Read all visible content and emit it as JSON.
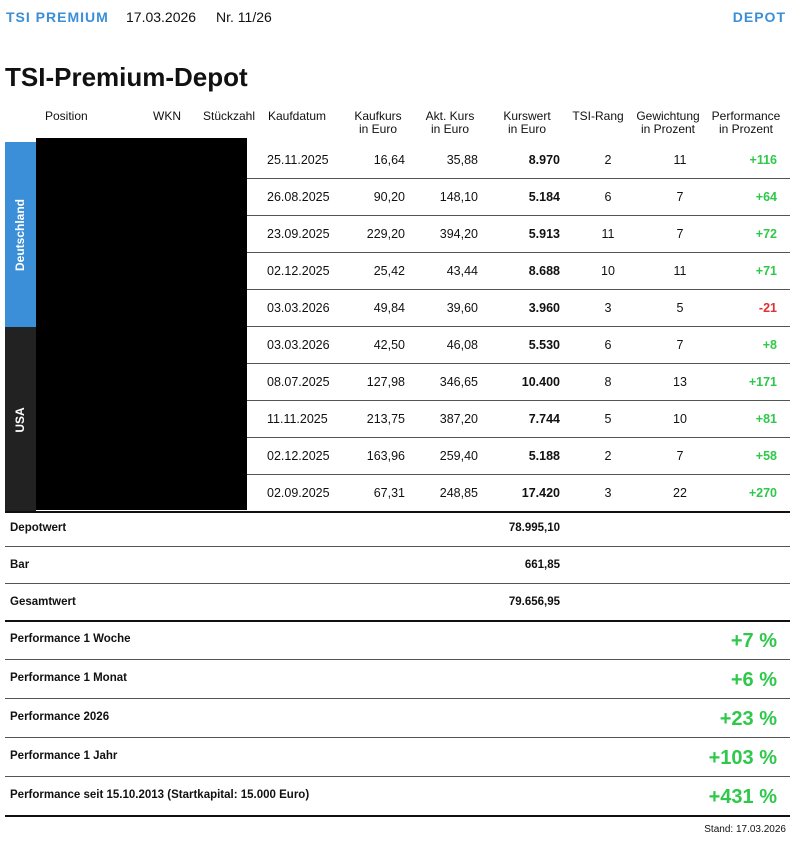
{
  "header": {
    "brand": "TSI PREMIUM",
    "date": "17.03.2026",
    "issue": "Nr. 11/26",
    "section": "DEPOT"
  },
  "title": "TSI-Premium-Depot",
  "table": {
    "columns": [
      [
        "Position"
      ],
      [
        "WKN"
      ],
      [
        "Stückzahl"
      ],
      [
        "Kaufdatum"
      ],
      [
        "Kaufkurs",
        "in Euro"
      ],
      [
        "Akt. Kurs",
        "in Euro"
      ],
      [
        "Kurswert",
        "in Euro"
      ],
      [
        "TSI-Rang"
      ],
      [
        "Gewichtung",
        "in Prozent"
      ],
      [
        "Performance",
        "in Prozent"
      ]
    ],
    "groups": [
      {
        "label": "Deutschland",
        "rows": [
          [
            "25.11.2025",
            "16,64",
            "35,88",
            "8.970",
            "2",
            "11",
            "+116"
          ],
          [
            "26.08.2025",
            "90,20",
            "148,10",
            "5.184",
            "6",
            "7",
            "+64"
          ],
          [
            "23.09.2025",
            "229,20",
            "394,20",
            "5.913",
            "11",
            "7",
            "+72"
          ],
          [
            "02.12.2025",
            "25,42",
            "43,44",
            "8.688",
            "10",
            "11",
            "+71"
          ],
          [
            "03.03.2026",
            "49,84",
            "39,60",
            "3.960",
            "3",
            "5",
            "-21"
          ]
        ]
      },
      {
        "label": "USA",
        "rows": [
          [
            "03.03.2026",
            "42,50",
            "46,08",
            "5.530",
            "6",
            "7",
            "+8"
          ],
          [
            "08.07.2025",
            "127,98",
            "346,65",
            "10.400",
            "8",
            "13",
            "+171"
          ],
          [
            "11.11.2025",
            "213,75",
            "387,20",
            "7.744",
            "5",
            "10",
            "+81"
          ],
          [
            "02.12.2025",
            "163,96",
            "259,40",
            "5.188",
            "2",
            "7",
            "+58"
          ],
          [
            "02.09.2025",
            "67,31",
            "248,85",
            "17.420",
            "3",
            "22",
            "+270"
          ]
        ]
      }
    ]
  },
  "summary": [
    {
      "label": "Depotwert",
      "value": "78.995,10"
    },
    {
      "label": "Bar",
      "value": "661,85"
    },
    {
      "label": "Gesamtwert",
      "value": "79.656,95"
    }
  ],
  "performance": [
    {
      "label": "Performance 1 Woche",
      "value": "+7 %"
    },
    {
      "label": "Performance 1 Monat",
      "value": "+6 %"
    },
    {
      "label": "Performance 2026",
      "value": "+23 %"
    },
    {
      "label": "Performance 1 Jahr",
      "value": "+103 %"
    },
    {
      "label": "Performance seit 15.10.2013 (Startkapital: 15.000 Euro)",
      "value": "+431 %"
    }
  ],
  "footer": "Stand: 17.03.2026"
}
